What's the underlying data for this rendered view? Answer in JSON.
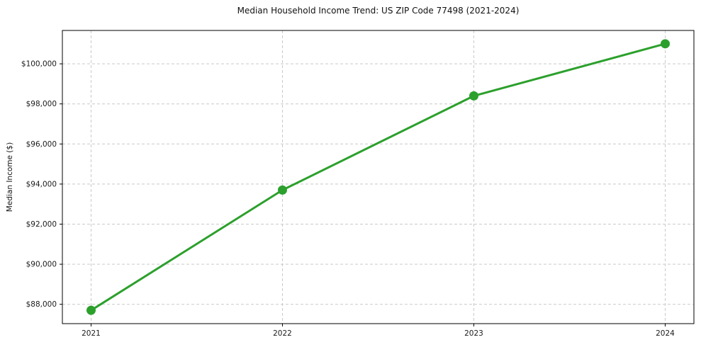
{
  "chart_data": {
    "type": "line",
    "title": "Median Household Income Trend: US ZIP Code 77498 (2021-2024)",
    "xlabel": "",
    "ylabel": "Median Income ($)",
    "x": [
      2021,
      2022,
      2023,
      2024
    ],
    "x_labels": [
      "2021",
      "2022",
      "2023",
      "2024"
    ],
    "values": [
      87700,
      93700,
      98400,
      101000
    ],
    "series_name": "Median Household Income",
    "xlim": [
      2020.85,
      2024.15
    ],
    "ylim": [
      87035,
      101665
    ],
    "yticks": [
      {
        "value": 88000,
        "label": "$88,000"
      },
      {
        "value": 90000,
        "label": "$90,000"
      },
      {
        "value": 92000,
        "label": "$92,000"
      },
      {
        "value": 94000,
        "label": "$94,000"
      },
      {
        "value": 96000,
        "label": "$96,000"
      },
      {
        "value": 98000,
        "label": "$98,000"
      },
      {
        "value": 100000,
        "label": "$100,000"
      }
    ],
    "grid": true,
    "grid_style": "dashed",
    "legend_position": "none",
    "line_color": "#2ca02c",
    "marker_color": "#2ca02c",
    "marker": "circle",
    "axis_color": "#000000",
    "grid_color": "#c9c9c9",
    "background_color": "#ffffff"
  }
}
